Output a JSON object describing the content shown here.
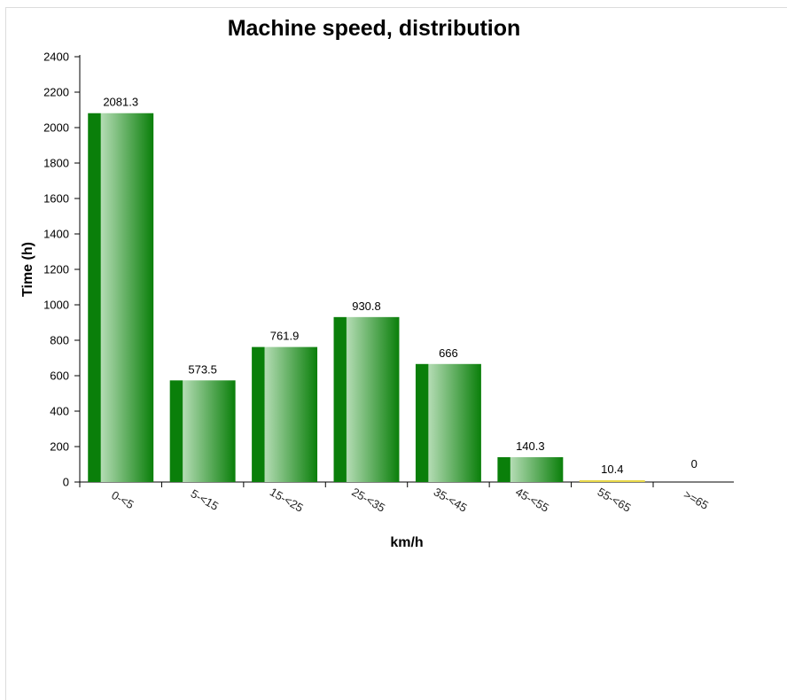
{
  "chart_data": {
    "type": "bar",
    "title": "Machine speed, distribution",
    "xlabel": "km/h",
    "ylabel": "Time (h)",
    "categories": [
      "0-<5",
      "5-<15",
      "15-<25",
      "25-<35",
      "35-<45",
      "45-<55",
      "55-<65",
      ">=65"
    ],
    "values": [
      2081.3,
      573.5,
      761.9,
      930.8,
      666,
      140.3,
      10.4,
      0
    ],
    "data_labels": [
      "2081.3",
      "573.5",
      "761.9",
      "930.8",
      "666",
      "140.3",
      "10.4",
      "0"
    ],
    "ylim": [
      0,
      2400
    ],
    "yticks": [
      0,
      200,
      400,
      600,
      800,
      1000,
      1200,
      1400,
      1600,
      1800,
      2000,
      2200,
      2400
    ],
    "grid": false,
    "colors": {
      "bar_dark": "#0a7f0a",
      "bar_light": "#b4dcb4",
      "bar_small": "#e8d84a",
      "axis": "#000000"
    }
  }
}
